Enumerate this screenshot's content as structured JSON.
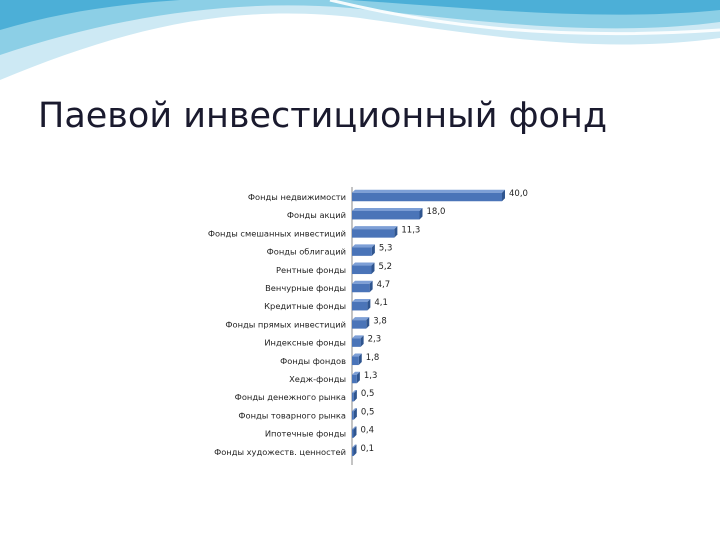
{
  "slide": {
    "title": "Паевой инвестиционный фонд"
  },
  "colors": {
    "bar": "#4a74b8",
    "bar_dark": "#2f558f",
    "bar_top": "#7d9fd6",
    "header_light": "#cde9f4",
    "header_mid": "#8ccfe6",
    "header_dark": "#41a9d3"
  },
  "chart_data": {
    "type": "bar",
    "orientation": "horizontal",
    "categories": [
      "Фонды недвижимости",
      "Фонды акций",
      "Фонды смешанных инвестиций",
      "Фонды облигаций",
      "Рентные фонды",
      "Венчурные фонды",
      "Кредитные фонды",
      "Фонды прямых инвестиций",
      "Индексные фонды",
      "Фонды фондов",
      "Хедж-фонды",
      "Фонды денежного рынка",
      "Фонды товарного рынка",
      "Ипотечные фонды",
      "Фонды художеств. ценностей"
    ],
    "values": [
      40.0,
      18.0,
      11.3,
      5.3,
      5.2,
      4.7,
      4.1,
      3.8,
      2.3,
      1.8,
      1.3,
      0.5,
      0.5,
      0.4,
      0.1
    ],
    "value_labels": [
      "40,0",
      "18,0",
      "11,3",
      "5,3",
      "5,2",
      "4,7",
      "4,1",
      "3,8",
      "2,3",
      "1,8",
      "1,3",
      "0,5",
      "0,5",
      "0,4",
      "0,1"
    ],
    "xlim": [
      0,
      40
    ],
    "grid": false,
    "legend": "none"
  }
}
